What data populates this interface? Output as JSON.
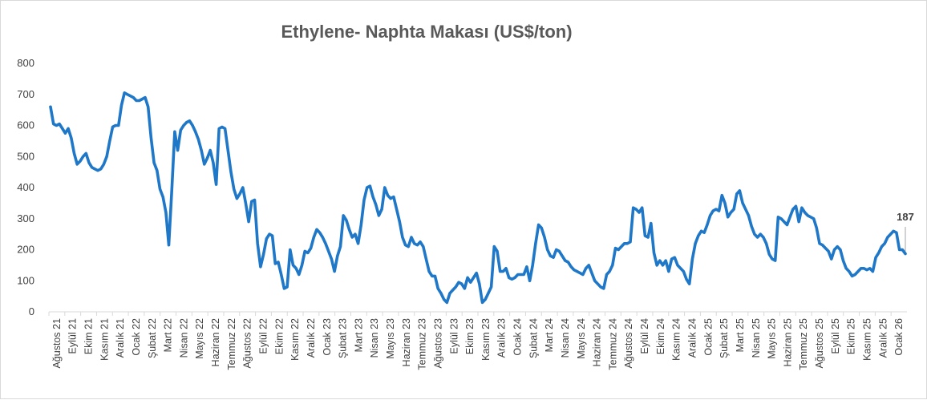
{
  "chart_data": {
    "type": "line",
    "title": "Ethylene- Naphta Makası (US$/ton)",
    "ylim": [
      0,
      800
    ],
    "yticks": [
      0,
      100,
      200,
      300,
      400,
      500,
      600,
      700,
      800
    ],
    "grid": false,
    "legend": "none",
    "line_color": "#1F77C8",
    "x_tick_labels": [
      "Ağustos 21",
      "Eylül 21",
      "Ekim 21",
      "Kasım 21",
      "Aralık 21",
      "Ocak 22",
      "Şubat 22",
      "Mart 22",
      "Nisan 22",
      "Mayıs 22",
      "Haziran 22",
      "Temmuz 22",
      "Ağustos 22",
      "Eylül 22",
      "Ekim 22",
      "Kasım 22",
      "Aralık 22",
      "Ocak 23",
      "Şubat 23",
      "Mart 23",
      "Nisan 23",
      "Mayıs 23",
      "Haziran 23",
      "Temmuz 23",
      "Ağustos 23",
      "Eylül 23",
      "Ekim 23",
      "Kasım 23",
      "Aralık 23",
      "Ocak 24",
      "Şubat 24",
      "Mart 24",
      "Nisan 24",
      "Mayıs 24",
      "Haziran 24",
      "Temmuz 24",
      "Ağustos 24",
      "Eylül 24",
      "Ekim 24",
      "Kasım 24",
      "Aralık 24",
      "Ocak 25",
      "Şubat 25",
      "Mart 25",
      "Nisan 25",
      "Mayıs 25",
      "Haziran 25",
      "Temmuz 25",
      "Ağustos 25",
      "Eylül 25",
      "Ekim 25",
      "Kasım 25",
      "Aralık 25",
      "Ocak 26"
    ],
    "values": [
      660,
      605,
      600,
      605,
      590,
      575,
      590,
      560,
      510,
      475,
      485,
      500,
      510,
      480,
      465,
      460,
      455,
      460,
      475,
      500,
      550,
      595,
      600,
      600,
      665,
      705,
      700,
      695,
      690,
      680,
      680,
      685,
      690,
      660,
      560,
      480,
      455,
      395,
      370,
      320,
      215,
      390,
      580,
      520,
      585,
      600,
      610,
      615,
      600,
      580,
      555,
      520,
      475,
      495,
      520,
      480,
      410,
      590,
      595,
      590,
      520,
      450,
      395,
      365,
      380,
      400,
      350,
      290,
      355,
      360,
      220,
      145,
      185,
      235,
      250,
      245,
      155,
      160,
      120,
      75,
      80,
      200,
      150,
      140,
      120,
      150,
      195,
      190,
      205,
      240,
      265,
      255,
      240,
      220,
      195,
      170,
      130,
      180,
      210,
      310,
      295,
      265,
      240,
      250,
      220,
      280,
      360,
      400,
      405,
      370,
      345,
      310,
      330,
      400,
      375,
      365,
      370,
      330,
      290,
      240,
      215,
      210,
      240,
      220,
      215,
      225,
      210,
      170,
      130,
      115,
      115,
      75,
      60,
      40,
      30,
      60,
      70,
      80,
      95,
      90,
      75,
      110,
      95,
      110,
      125,
      90,
      30,
      40,
      60,
      80,
      210,
      195,
      130,
      130,
      140,
      110,
      105,
      110,
      120,
      120,
      120,
      145,
      100,
      150,
      220,
      280,
      270,
      240,
      200,
      180,
      175,
      200,
      195,
      180,
      165,
      160,
      145,
      135,
      130,
      125,
      120,
      140,
      150,
      125,
      100,
      90,
      80,
      75,
      120,
      130,
      150,
      205,
      200,
      210,
      220,
      220,
      225,
      335,
      330,
      320,
      335,
      245,
      240,
      285,
      190,
      150,
      165,
      150,
      165,
      130,
      170,
      175,
      150,
      140,
      130,
      105,
      90,
      170,
      220,
      245,
      260,
      255,
      280,
      310,
      325,
      330,
      325,
      375,
      350,
      305,
      320,
      330,
      380,
      390,
      350,
      330,
      310,
      275,
      250,
      240,
      250,
      240,
      220,
      185,
      170,
      165,
      305,
      300,
      290,
      280,
      305,
      330,
      340,
      290,
      335,
      320,
      310,
      305,
      300,
      270,
      220,
      215,
      205,
      195,
      170,
      200,
      210,
      200,
      165,
      140,
      130,
      115,
      120,
      130,
      140,
      140,
      135,
      140,
      130,
      175,
      190,
      210,
      220,
      240,
      250,
      260,
      255,
      200,
      200,
      187
    ],
    "end_label": "187"
  }
}
